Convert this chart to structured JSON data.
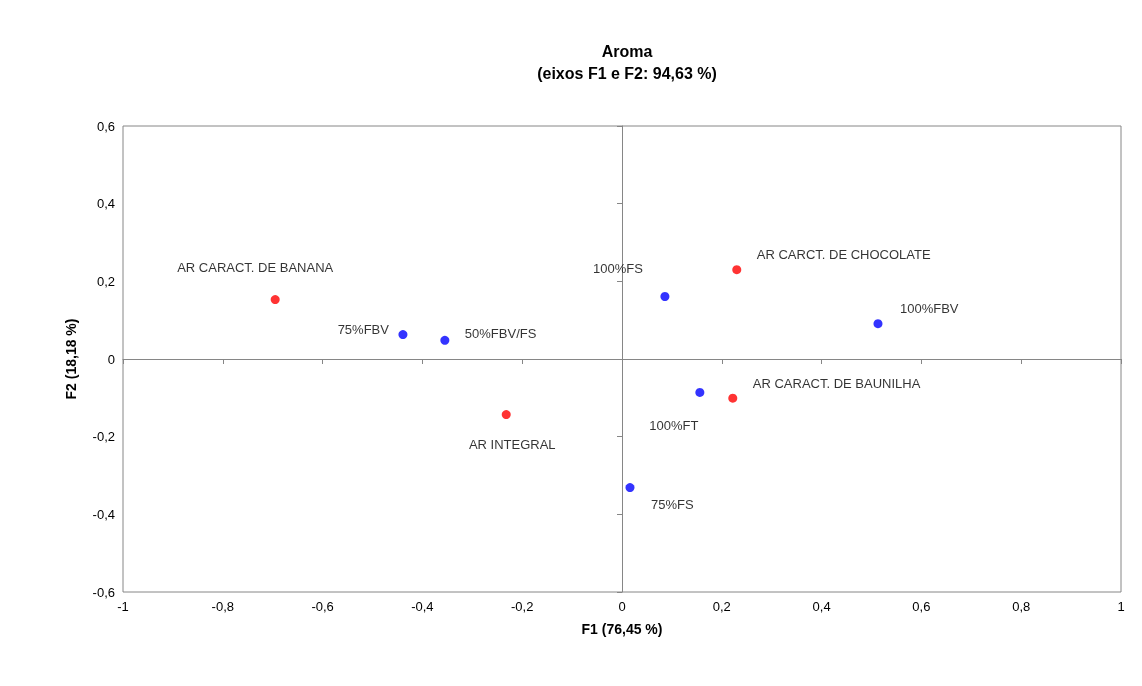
{
  "chart_data": {
    "type": "scatter",
    "title": "Aroma",
    "subtitle": "(eixos F1 e F2: 94,63 %)",
    "xlabel": "F1 (76,45 %)",
    "ylabel": "F2 (18,18 %)",
    "xlim": [
      -1,
      1
    ],
    "xticks": [
      -1,
      {
        "value": -0.8,
        "label": "-0,8"
      },
      {
        "value": -0.6,
        "label": "-0,6"
      },
      {
        "value": -0.4,
        "label": "-0,4"
      },
      {
        "value": -0.2,
        "label": "-0,2"
      },
      0,
      {
        "value": 0.2,
        "label": "0,2"
      },
      {
        "value": 0.4,
        "label": "0,4"
      },
      {
        "value": 0.6,
        "label": "0,6"
      },
      {
        "value": 0.8,
        "label": "0,8"
      },
      1
    ],
    "ylim": [
      -0.6,
      0.6
    ],
    "yticks": [
      {
        "value": -0.6,
        "label": "-0,6"
      },
      {
        "value": -0.4,
        "label": "-0,4"
      },
      {
        "value": -0.2,
        "label": "-0,2"
      },
      0,
      {
        "value": 0.2,
        "label": "0,2"
      },
      {
        "value": 0.4,
        "label": "0,4"
      },
      {
        "value": 0.6,
        "label": "0,6"
      }
    ],
    "marker": "circle",
    "series": [
      {
        "color": "#ff0000",
        "x": [
          -0.695,
          0.23,
          -0.232,
          0.222
        ],
        "values": [
          0.153,
          0.23,
          -0.143,
          -0.101
        ]
      },
      {
        "color": "#0000ff",
        "x": [
          -0.439,
          -0.355,
          0.086,
          0.513,
          0.156,
          0.016
        ],
        "values": [
          0.063,
          0.048,
          0.161,
          0.091,
          -0.086,
          -0.331
        ]
      }
    ],
    "annotations": [
      {
        "text": "AR CARACT. DE BANANA",
        "x": -0.695,
        "y": 0.153
      },
      {
        "text": "AR CARCT. DE CHOCOLATE",
        "x": 0.23,
        "y": 0.23
      },
      {
        "text": "AR INTEGRAL",
        "x": -0.232,
        "y": -0.143
      },
      {
        "text": "AR CARACT. DE BAUNILHA",
        "x": 0.222,
        "y": -0.101
      },
      {
        "text": "75%FBV",
        "x": -0.439,
        "y": 0.063
      },
      {
        "text": "50%FBV/FS",
        "x": -0.355,
        "y": 0.048
      },
      {
        "text": "100%FS",
        "x": 0.086,
        "y": 0.161
      },
      {
        "text": "100%FBV",
        "x": 0.513,
        "y": 0.091
      },
      {
        "text": "100%FT",
        "x": 0.156,
        "y": -0.086
      },
      {
        "text": "75%FS",
        "x": 0.016,
        "y": -0.331
      }
    ]
  }
}
